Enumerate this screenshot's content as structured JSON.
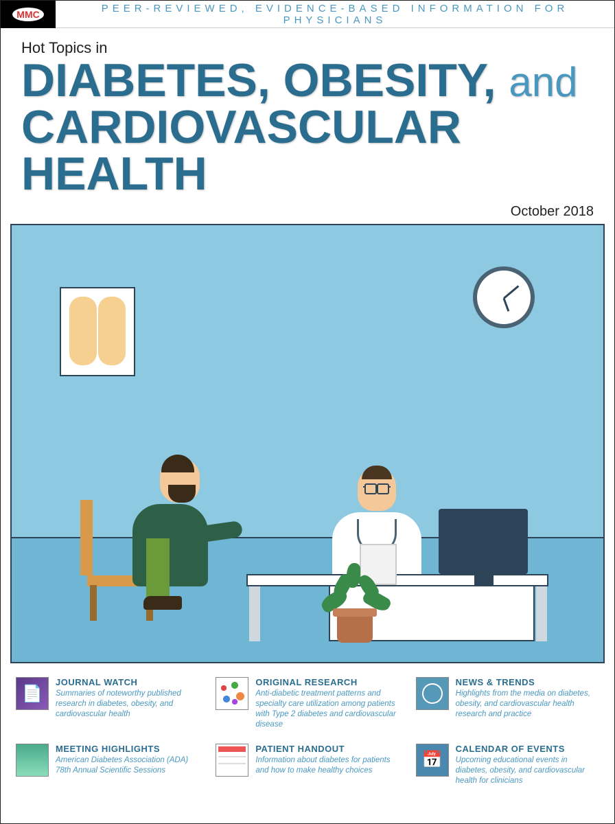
{
  "header": {
    "logo_text": "MMC",
    "tagline": "PEER-REVIEWED, EVIDENCE-BASED INFORMATION FOR PHYSICIANS"
  },
  "title": {
    "kicker": "Hot Topics in",
    "line1a": "DIABETES, OBESITY,",
    "line1b": "and",
    "line2": "CARDIOVASCULAR HEALTH",
    "date": "October 2018"
  },
  "illustration": {
    "type": "infographic",
    "background_color": "#8ec9e2",
    "floor_color": "#6fb5d4",
    "border_color": "#2c4358",
    "elements": [
      "anatomy-poster",
      "wall-clock",
      "patient-seated",
      "chair",
      "doctor",
      "stethoscope",
      "clipboard",
      "desk",
      "monitor",
      "potted-plant"
    ]
  },
  "sections": [
    {
      "title": "JOURNAL WATCH",
      "desc": "Summaries of noteworthy published research in diabetes, obesity, and cardiovascular health",
      "icon": "journal"
    },
    {
      "title": "ORIGINAL RESEARCH",
      "desc": "Anti-diabetic treatment patterns and specialty care utilization among patients with Type 2 diabetes and cardiovascular disease",
      "icon": "research"
    },
    {
      "title": "NEWS & TRENDS",
      "desc": "Highlights from the media on diabetes, obesity, and cardiovascular health research and practice",
      "icon": "news"
    },
    {
      "title": "MEETING HIGHLIGHTS",
      "desc": "American Diabetes Association (ADA) 78th Annual Scientific Sessions",
      "icon": "meeting"
    },
    {
      "title": "PATIENT HANDOUT",
      "desc": "Information about diabetes for patients and how to make healthy choices",
      "icon": "handout"
    },
    {
      "title": "CALENDAR OF EVENTS",
      "desc": "Upcoming educational events in diabetes, obesity, and cardiovascular health for clinicians",
      "icon": "calendar"
    }
  ],
  "styling": {
    "title_color": "#2b6d8f",
    "accent_color": "#4a98c0",
    "title_fontsize": 68,
    "section_title_fontsize": 13,
    "section_desc_fontsize": 11.5
  }
}
